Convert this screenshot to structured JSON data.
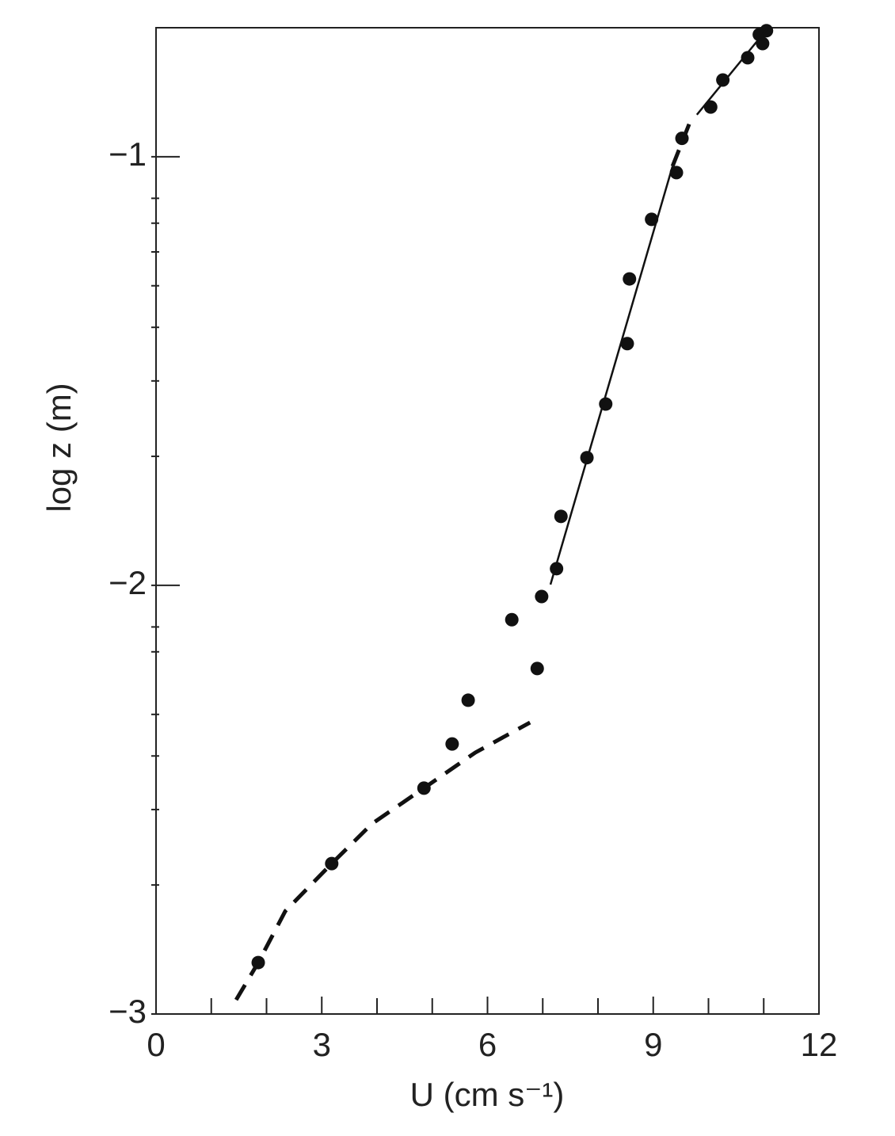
{
  "chart_data": {
    "type": "scatter",
    "x_label": "U (cm s⁻¹)",
    "y_label": "log z (m)",
    "xlim": [
      0,
      12
    ],
    "ylim": [
      -3,
      -0.699
    ],
    "xticks": [
      0,
      3,
      6,
      9,
      12
    ],
    "xminor_ticks": [
      1,
      2,
      4,
      5,
      7,
      8,
      10,
      11
    ],
    "yticks": [
      {
        "value": -3,
        "label": "−3"
      },
      {
        "value": -2,
        "label": "−2"
      },
      {
        "value": -1,
        "label": "−1"
      }
    ],
    "yminor_ticks": [
      -2.699,
      -2.523,
      -2.398,
      -2.301,
      -2.155,
      -2.097,
      -1.699,
      -1.523,
      -1.398,
      -1.301,
      -1.222,
      -1.155,
      -1.097
    ],
    "grid": false,
    "series": [
      {
        "mode": "markers",
        "color": "#111111",
        "x": [
          1.85,
          3.18,
          4.85,
          5.36,
          5.65,
          6.44,
          6.9,
          6.98,
          7.25,
          7.33,
          7.8,
          8.14,
          8.53,
          8.57,
          8.97,
          9.42,
          9.52,
          10.04,
          10.26,
          10.71,
          10.98,
          10.92,
          11.05
        ],
        "values": [
          -2.88,
          -2.649,
          -2.473,
          -2.37,
          -2.268,
          -2.08,
          -2.194,
          -2.026,
          -1.961,
          -1.839,
          -1.702,
          -1.577,
          -1.436,
          -1.285,
          -1.146,
          -1.037,
          -0.957,
          -0.884,
          -0.821,
          -0.769,
          -0.736,
          -0.715,
          -0.706
        ]
      },
      {
        "mode": "line",
        "dash": true,
        "color": "#111111",
        "x": [
          1.45,
          1.85,
          2.34,
          3.18,
          3.91,
          4.85,
          5.78,
          6.77
        ],
        "values": [
          -2.967,
          -2.88,
          -2.76,
          -2.649,
          -2.556,
          -2.473,
          -2.39,
          -2.32
        ]
      },
      {
        "mode": "line",
        "dash": false,
        "color": "#111111",
        "x": [
          7.14,
          9.35
        ],
        "values": [
          -1.998,
          -1.022
        ]
      },
      {
        "mode": "line",
        "dash": true,
        "color": "#111111",
        "x": [
          9.35,
          9.65
        ],
        "values": [
          -1.022,
          -0.924
        ]
      },
      {
        "mode": "line",
        "dash": false,
        "color": "#111111",
        "x": [
          9.79,
          11.08
        ],
        "values": [
          -0.902,
          -0.699
        ]
      }
    ]
  }
}
